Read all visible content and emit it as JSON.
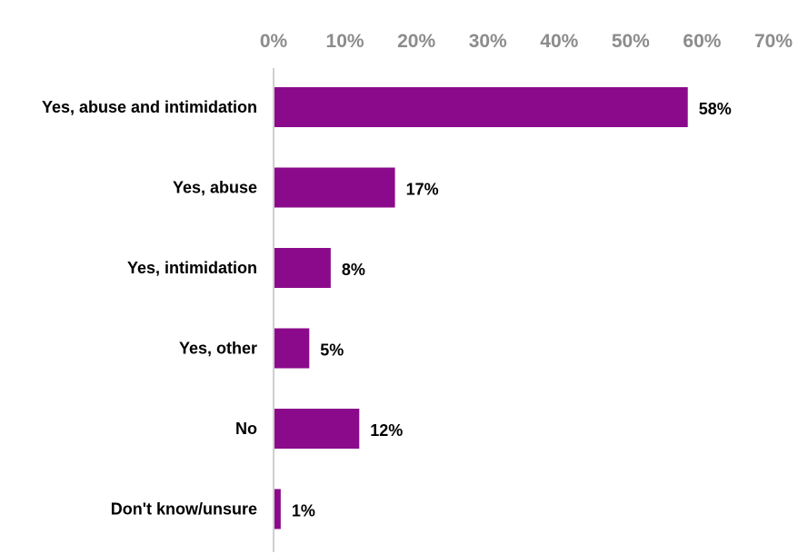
{
  "chart_data": {
    "type": "bar",
    "orientation": "horizontal",
    "categories": [
      "Yes, abuse and intimidation",
      "Yes, abuse",
      "Yes, intimidation",
      "Yes, other",
      "No",
      "Don't know/unsure"
    ],
    "values": [
      58,
      17,
      8,
      5,
      12,
      1
    ],
    "data_labels": [
      "58%",
      "17%",
      "8%",
      "5%",
      "12%",
      "1%"
    ],
    "xlim": [
      0,
      70
    ],
    "x_ticks": [
      0,
      10,
      20,
      30,
      40,
      50,
      60,
      70
    ],
    "x_tick_labels": [
      "0%",
      "10%",
      "20%",
      "30%",
      "40%",
      "50%",
      "60%",
      "70%"
    ],
    "x_axis_position": "top",
    "grid": false,
    "legend": "none",
    "colors": {
      "bar": "#8b0a8b",
      "axis_line": "#bfbfbf",
      "tick_label": "#8c8c8c",
      "text": "#000000"
    }
  }
}
